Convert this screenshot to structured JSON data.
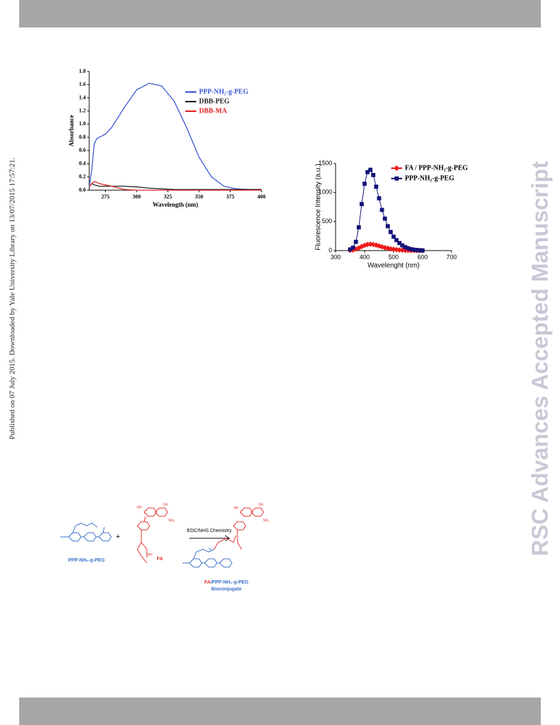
{
  "sidebar_text": "Published on 07 July 2015. Downloaded by Yale University Library on 13/07/2015 17:57:21.",
  "watermark": "RSC Advances Accepted Manuscript",
  "chart_data": [
    {
      "type": "line",
      "y_label": "Absorbance",
      "x_label": "Wavelength (nm)",
      "xlim": [
        262,
        400
      ],
      "xticks": [
        275,
        300,
        325,
        350,
        375,
        400
      ],
      "ylim": [
        0,
        1.8
      ],
      "yticks": [
        {
          "value": 0,
          "label": "0.0"
        },
        0.2,
        0.4,
        0.6,
        0.8,
        {
          "value": 1,
          "label": "1.0"
        },
        1.2,
        1.4,
        1.6,
        1.8
      ],
      "x": [
        262,
        264,
        266,
        268,
        270,
        275,
        280,
        290,
        300,
        310,
        320,
        330,
        340,
        350,
        360,
        370,
        380,
        390,
        400
      ],
      "series": [
        {
          "name": "PPP-NH₂-g-PEG",
          "color": "#3a55d0",
          "values": [
            0.05,
            0.3,
            0.7,
            0.78,
            0.8,
            0.85,
            0.95,
            1.25,
            1.52,
            1.62,
            1.58,
            1.35,
            0.95,
            0.5,
            0.2,
            0.06,
            0.02,
            0.01,
            0.01
          ]
        },
        {
          "name": "DBB-PEG",
          "color": "#222222",
          "values": [
            0.05,
            0.1,
            0.08,
            0.07,
            0.06,
            0.06,
            0.06,
            0.06,
            0.05,
            0.03,
            0.02,
            0.01,
            0.01,
            0.01,
            0.01,
            0.01,
            0.01,
            0.01,
            0.01
          ]
        },
        {
          "name": "DBB-MA",
          "color": "#e02020",
          "values": [
            0.05,
            0.1,
            0.13,
            0.12,
            0.1,
            0.08,
            0.06,
            0.01,
            0,
            0,
            0,
            0,
            0,
            0,
            0,
            0,
            0,
            0,
            0
          ]
        }
      ]
    },
    {
      "type": "line",
      "y_label": "Fluorescence Intensity (a.u.)",
      "x_label": "Wavelenght (nm)",
      "xlim": [
        300,
        700
      ],
      "xticks": [
        300,
        400,
        500,
        600,
        700
      ],
      "ylim": [
        0,
        1500
      ],
      "yticks": [
        0,
        500,
        1000,
        1500
      ],
      "x": [
        350,
        360,
        370,
        380,
        390,
        400,
        410,
        420,
        430,
        440,
        450,
        460,
        470,
        480,
        490,
        500,
        510,
        520,
        530,
        540,
        550,
        560,
        570,
        580,
        590,
        600
      ],
      "series": [
        {
          "name": "FA / PPP-NH₂-g-PEG",
          "color": "#ee1c1c",
          "marker": "diamond",
          "values": [
            5,
            10,
            25,
            45,
            70,
            90,
            105,
            110,
            105,
            95,
            80,
            65,
            50,
            40,
            30,
            22,
            16,
            11,
            8,
            5,
            3,
            2,
            1,
            1,
            0,
            0
          ]
        },
        {
          "name": "PPP-NH₂-g-PEG",
          "color": "#12127a",
          "marker": "square",
          "values": [
            20,
            50,
            150,
            400,
            800,
            1150,
            1350,
            1390,
            1300,
            1100,
            900,
            700,
            550,
            420,
            320,
            240,
            180,
            130,
            90,
            60,
            40,
            25,
            15,
            10,
            5,
            3
          ]
        }
      ]
    }
  ],
  "scheme": {
    "reactant_label": "PPP-NH₂-g-PEG",
    "plus": "+",
    "fa_label": "FA",
    "arrow_label": "EDC/NHS Chemistry",
    "product_label_prefix": "FA",
    "product_label": "/PPP-NH₂-g-PEG",
    "product_sublabel": "Bioconjugate",
    "atoms": [
      "OH",
      "NH₂",
      "NH",
      "OH",
      "NH₂",
      "NH",
      "N",
      "OH"
    ]
  }
}
